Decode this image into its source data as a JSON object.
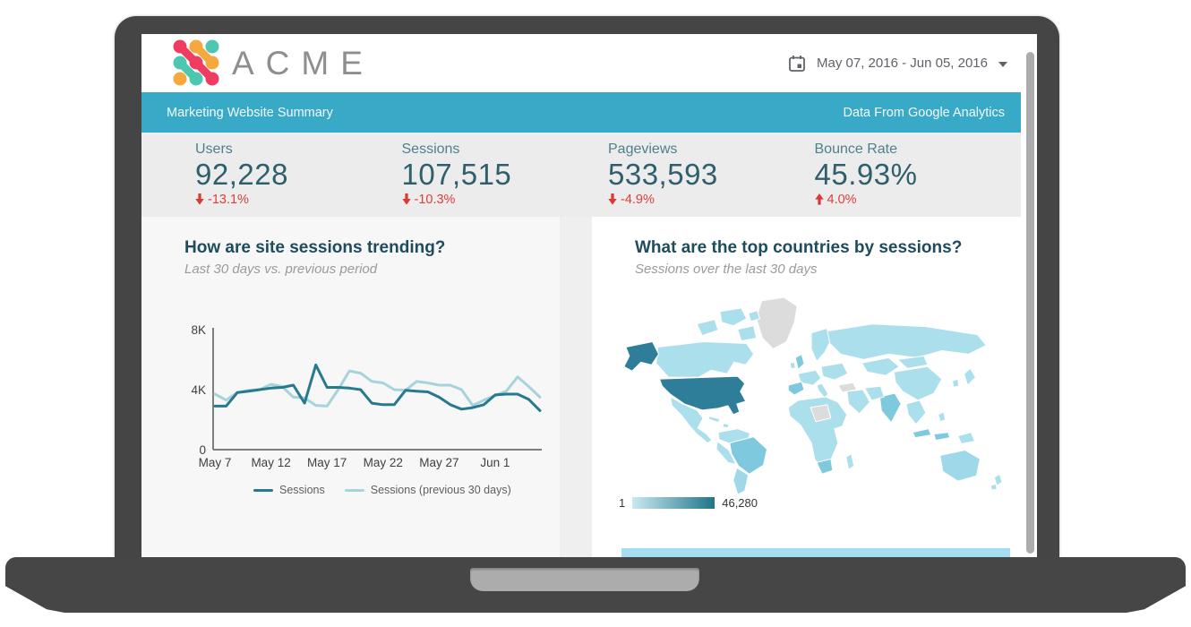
{
  "header": {
    "brand": "ACME",
    "date_range": "May 07, 2016 - Jun 05, 2016"
  },
  "banner": {
    "title": "Marketing Website Summary",
    "source": "Data From Google Analytics"
  },
  "kpis": [
    {
      "label": "Users",
      "value": "92,228",
      "delta": "-13.1%",
      "direction": "down"
    },
    {
      "label": "Sessions",
      "value": "107,515",
      "delta": "-10.3%",
      "direction": "down"
    },
    {
      "label": "Pageviews",
      "value": "533,593",
      "delta": "-4.9%",
      "direction": "down"
    },
    {
      "label": "Bounce Rate",
      "value": "45.93%",
      "delta": "4.0%",
      "direction": "up"
    }
  ],
  "chart_data": [
    {
      "type": "line",
      "title": "How are site sessions trending?",
      "subtitle": "Last 30 days vs. previous period",
      "ylim": [
        0,
        8000
      ],
      "y_tick_labels": [
        {
          "label": "0",
          "value": 0
        },
        {
          "label": "4K",
          "value": 4000
        },
        {
          "label": "8K",
          "value": 8000
        }
      ],
      "x_tick_labels": [
        {
          "label": "May 7",
          "index": 0
        },
        {
          "label": "May 12",
          "index": 5
        },
        {
          "label": "May 17",
          "index": 10
        },
        {
          "label": "May 22",
          "index": 15
        },
        {
          "label": "May 27",
          "index": 20
        },
        {
          "label": "Jun 1",
          "index": 25
        }
      ],
      "series": [
        {
          "name": "Sessions",
          "color": "#27798E",
          "values": [
            2900,
            2900,
            3800,
            3900,
            4000,
            4100,
            4150,
            4300,
            3100,
            5650,
            4150,
            4150,
            4100,
            4000,
            3100,
            3000,
            3000,
            3950,
            3900,
            3850,
            3500,
            3000,
            2700,
            2800,
            3000,
            3650,
            3700,
            3700,
            3350,
            2600
          ]
        },
        {
          "name": "Sessions (previous 30 days)",
          "color": "#A6D3DC",
          "values": [
            3700,
            3300,
            3800,
            3950,
            4000,
            4350,
            4200,
            3500,
            3450,
            2950,
            2900,
            4000,
            5250,
            5100,
            4550,
            4450,
            4000,
            3950,
            4550,
            4450,
            4300,
            4300,
            4000,
            2950,
            3300,
            3600,
            3900,
            4850,
            4200,
            3500
          ]
        }
      ],
      "legend_position": "bottom"
    },
    {
      "type": "choropleth",
      "title": "What are the top countries by sessions?",
      "subtitle": "Sessions over the last 30 days",
      "scale": {
        "min_label": "1",
        "max_label": "46,280"
      },
      "top_country": "United States"
    }
  ],
  "colors": {
    "banner_teal": "#38A9C7",
    "kpi_strip": "#ECECEC",
    "kpi_label": "#4E808E",
    "kpi_value": "#2F5F6C",
    "delta_red": "#DD3E39",
    "heading": "#1F4B5E",
    "subtitle_gray": "#9B9B9B",
    "map_light": "#ABDFEC",
    "map_light2": "#9FD9E9",
    "map_mid": "#7FC9DE",
    "map_dark": "#2E7E99",
    "map_nodata": "#DCDCDC",
    "scale_from": "#C9E9F2",
    "scale_to": "#20758A",
    "table_strip": "#A5DEF0",
    "logo_pink": "#EF3C60",
    "logo_orange": "#F4A83D",
    "logo_teal": "#4CC8B2"
  }
}
